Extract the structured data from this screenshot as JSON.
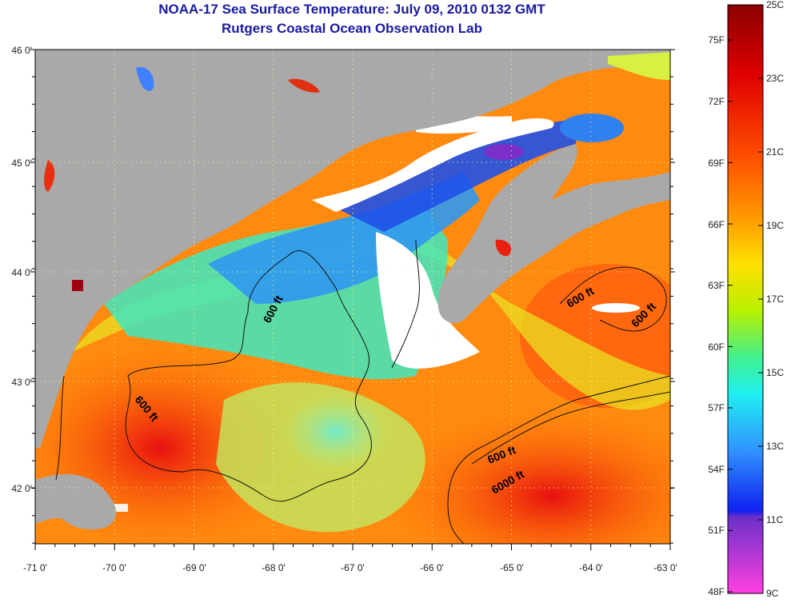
{
  "header": {
    "title": "NOAA-17 Sea Surface Temperature:  July 09, 2010 0132 GMT",
    "subtitle": "Rutgers Coastal Ocean Observation Lab"
  },
  "map": {
    "lon_ticks": [
      "-71 0'",
      "-70 0'",
      "-69 0'",
      "-68 0'",
      "-67 0'",
      "-66 0'",
      "-65 0'",
      "-64 0'",
      "-63 0'"
    ],
    "lat_ticks": [
      "46 0'",
      "45 0'",
      "44 0'",
      "43 0'",
      "42 0'"
    ],
    "contour_labels": [
      "600 ft",
      "600 ft",
      "600 ft",
      "600 ft",
      "600 ft",
      "6000 ft"
    ],
    "land_color": "#a9a9a9",
    "cloud_color": "#ffffff"
  },
  "colorbar": {
    "celsius_labels": [
      "25C",
      "23C",
      "21C",
      "19C",
      "17C",
      "15C",
      "13C",
      "11C",
      "9C"
    ],
    "fahrenheit_labels": [
      "75F",
      "72F",
      "69F",
      "66F",
      "63F",
      "60F",
      "57F",
      "54F",
      "51F",
      "48F"
    ],
    "stops": [
      "#8b0000",
      "#e00000",
      "#ff5000",
      "#ff9800",
      "#ffe000",
      "#b8f000",
      "#40f090",
      "#20f0f0",
      "#3090ff",
      "#1020f0",
      "#6a30c8",
      "#ff40e0"
    ]
  }
}
